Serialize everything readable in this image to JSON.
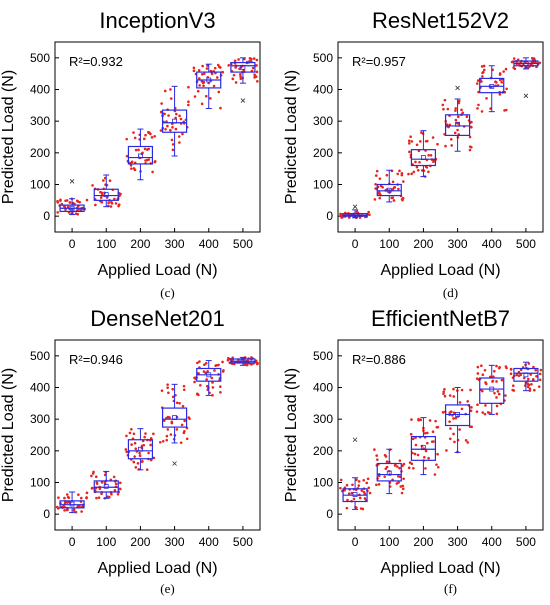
{
  "chart_data": [
    {
      "type": "box",
      "title": "InceptionV3",
      "panel_label": "(c)",
      "annotation": "R²=0.932",
      "xlabel": "Applied Load (N)",
      "ylabel": "Predicted Load (N)",
      "categories": [
        "0",
        "100",
        "200",
        "300",
        "400",
        "500"
      ],
      "xlim": [
        -50,
        550
      ],
      "ylim": [
        -50,
        550
      ],
      "yticks": [
        0,
        100,
        200,
        300,
        400,
        500
      ],
      "boxes": [
        {
          "x": 0,
          "whisker_low": 5,
          "q1": 15,
          "median": 25,
          "mean": 25,
          "q3": 35,
          "whisker_high": 55,
          "outliers": [
            110
          ]
        },
        {
          "x": 100,
          "whisker_low": 30,
          "q1": 50,
          "median": 65,
          "mean": 68,
          "q3": 85,
          "whisker_high": 130,
          "outliers": []
        },
        {
          "x": 200,
          "whisker_low": 115,
          "q1": 165,
          "median": 185,
          "mean": 190,
          "q3": 220,
          "whisker_high": 275,
          "outliers": []
        },
        {
          "x": 300,
          "whisker_low": 190,
          "q1": 265,
          "median": 295,
          "mean": 300,
          "q3": 335,
          "whisker_high": 410,
          "outliers": []
        },
        {
          "x": 400,
          "whisker_low": 340,
          "q1": 405,
          "median": 430,
          "mean": 430,
          "q3": 455,
          "whisker_high": 480,
          "outliers": []
        },
        {
          "x": 500,
          "whisker_low": 420,
          "q1": 455,
          "median": 475,
          "mean": 470,
          "q3": 485,
          "whisker_high": 500,
          "outliers": [
            365
          ]
        }
      ]
    },
    {
      "type": "box",
      "title": "ResNet152V2",
      "panel_label": "(d)",
      "annotation": "R²=0.957",
      "xlabel": "Applied Load (N)",
      "ylabel": "Predicted Load (N)",
      "categories": [
        "0",
        "100",
        "200",
        "300",
        "400",
        "500"
      ],
      "xlim": [
        -50,
        550
      ],
      "ylim": [
        -50,
        550
      ],
      "yticks": [
        0,
        100,
        200,
        300,
        400,
        500
      ],
      "boxes": [
        {
          "x": 0,
          "whisker_low": -5,
          "q1": 0,
          "median": 3,
          "mean": 3,
          "q3": 8,
          "whisker_high": 20,
          "outliers": [
            30
          ]
        },
        {
          "x": 100,
          "whisker_low": 45,
          "q1": 65,
          "median": 80,
          "mean": 82,
          "q3": 100,
          "whisker_high": 145,
          "outliers": []
        },
        {
          "x": 200,
          "whisker_low": 125,
          "q1": 160,
          "median": 180,
          "mean": 185,
          "q3": 210,
          "whisker_high": 270,
          "outliers": []
        },
        {
          "x": 300,
          "whisker_low": 205,
          "q1": 255,
          "median": 285,
          "mean": 290,
          "q3": 320,
          "whisker_high": 370,
          "outliers": [
            405
          ]
        },
        {
          "x": 400,
          "whisker_low": 330,
          "q1": 390,
          "median": 410,
          "mean": 410,
          "q3": 435,
          "whisker_high": 475,
          "outliers": []
        },
        {
          "x": 500,
          "whisker_low": 465,
          "q1": 475,
          "median": 482,
          "mean": 482,
          "q3": 490,
          "whisker_high": 500,
          "outliers": [
            380
          ]
        }
      ]
    },
    {
      "type": "box",
      "title": "DenseNet201",
      "panel_label": "(e)",
      "annotation": "R²=0.946",
      "xlabel": "Applied Load (N)",
      "ylabel": "Predicted Load (N)",
      "categories": [
        "0",
        "100",
        "200",
        "300",
        "400",
        "500"
      ],
      "xlim": [
        -50,
        550
      ],
      "ylim": [
        -50,
        550
      ],
      "yticks": [
        0,
        100,
        200,
        300,
        400,
        500
      ],
      "boxes": [
        {
          "x": 0,
          "whisker_low": 5,
          "q1": 20,
          "median": 30,
          "mean": 32,
          "q3": 42,
          "whisker_high": 70,
          "outliers": []
        },
        {
          "x": 100,
          "whisker_low": 50,
          "q1": 70,
          "median": 85,
          "mean": 88,
          "q3": 105,
          "whisker_high": 135,
          "outliers": []
        },
        {
          "x": 200,
          "whisker_low": 140,
          "q1": 175,
          "median": 200,
          "mean": 205,
          "q3": 235,
          "whisker_high": 270,
          "outliers": []
        },
        {
          "x": 300,
          "whisker_low": 225,
          "q1": 275,
          "median": 300,
          "mean": 305,
          "q3": 335,
          "whisker_high": 410,
          "outliers": [
            160
          ]
        },
        {
          "x": 400,
          "whisker_low": 375,
          "q1": 420,
          "median": 440,
          "mean": 440,
          "q3": 460,
          "whisker_high": 485,
          "outliers": []
        },
        {
          "x": 500,
          "whisker_low": 470,
          "q1": 478,
          "median": 483,
          "mean": 483,
          "q3": 490,
          "whisker_high": 495,
          "outliers": []
        }
      ]
    },
    {
      "type": "box",
      "title": "EfficientNetB7",
      "panel_label": "(f)",
      "annotation": "R²=0.886",
      "xlabel": "Applied Load (N)",
      "ylabel": "Predicted Load (N)",
      "categories": [
        "0",
        "100",
        "200",
        "300",
        "400",
        "500"
      ],
      "xlim": [
        -50,
        550
      ],
      "ylim": [
        -50,
        550
      ],
      "yticks": [
        0,
        100,
        200,
        300,
        400,
        500
      ],
      "boxes": [
        {
          "x": 0,
          "whisker_low": 15,
          "q1": 40,
          "median": 60,
          "mean": 62,
          "q3": 80,
          "whisker_high": 115,
          "outliers": [
            235
          ]
        },
        {
          "x": 100,
          "whisker_low": 65,
          "q1": 105,
          "median": 125,
          "mean": 130,
          "q3": 160,
          "whisker_high": 205,
          "outliers": []
        },
        {
          "x": 200,
          "whisker_low": 125,
          "q1": 170,
          "median": 205,
          "mean": 210,
          "q3": 245,
          "whisker_high": 305,
          "outliers": []
        },
        {
          "x": 300,
          "whisker_low": 195,
          "q1": 280,
          "median": 315,
          "mean": 315,
          "q3": 345,
          "whisker_high": 400,
          "outliers": []
        },
        {
          "x": 400,
          "whisker_low": 315,
          "q1": 350,
          "median": 395,
          "mean": 395,
          "q3": 430,
          "whisker_high": 470,
          "outliers": []
        },
        {
          "x": 500,
          "whisker_low": 390,
          "q1": 420,
          "median": 445,
          "mean": 440,
          "q3": 460,
          "whisker_high": 480,
          "outliers": []
        }
      ]
    }
  ],
  "colors": {
    "box": "#2929e6",
    "points": "#e8241c",
    "mean_marker": "#2929e6",
    "axis": "#000000",
    "grid": "#cccccc"
  }
}
